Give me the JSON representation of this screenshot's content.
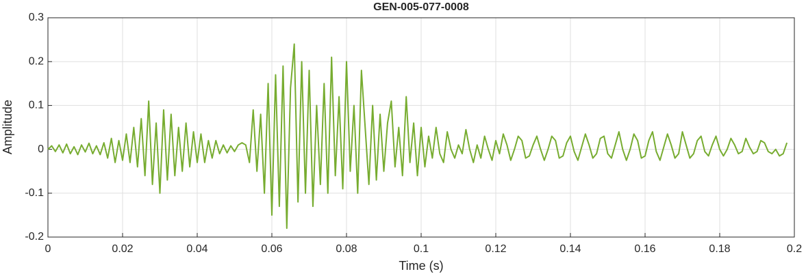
{
  "chart_data": {
    "type": "line",
    "title": "GEN-005-077-0008",
    "xlabel": "Time (s)",
    "ylabel": "Amplitude",
    "xlim": [
      0,
      0.2
    ],
    "ylim": [
      -0.2,
      0.3
    ],
    "xticks": [
      0,
      0.02,
      0.04,
      0.06,
      0.08,
      0.1,
      0.12,
      0.14,
      0.16,
      0.18,
      0.2
    ],
    "yticks": [
      -0.2,
      -0.1,
      0,
      0.1,
      0.2,
      0.3
    ],
    "grid": true,
    "x": [
      0,
      0.001,
      0.002,
      0.003,
      0.004,
      0.005,
      0.006,
      0.007,
      0.008,
      0.009,
      0.01,
      0.011,
      0.012,
      0.013,
      0.014,
      0.015,
      0.016,
      0.017,
      0.018,
      0.019,
      0.02,
      0.021,
      0.022,
      0.023,
      0.024,
      0.025,
      0.026,
      0.027,
      0.028,
      0.029,
      0.03,
      0.031,
      0.032,
      0.033,
      0.034,
      0.035,
      0.036,
      0.037,
      0.038,
      0.039,
      0.04,
      0.041,
      0.042,
      0.043,
      0.044,
      0.045,
      0.046,
      0.047,
      0.048,
      0.049,
      0.05,
      0.051,
      0.052,
      0.053,
      0.054,
      0.055,
      0.056,
      0.057,
      0.058,
      0.059,
      0.06,
      0.061,
      0.062,
      0.063,
      0.064,
      0.065,
      0.066,
      0.067,
      0.068,
      0.069,
      0.07,
      0.071,
      0.072,
      0.073,
      0.074,
      0.075,
      0.076,
      0.077,
      0.078,
      0.079,
      0.08,
      0.081,
      0.082,
      0.083,
      0.084,
      0.085,
      0.086,
      0.087,
      0.088,
      0.089,
      0.09,
      0.091,
      0.092,
      0.093,
      0.094,
      0.095,
      0.096,
      0.097,
      0.098,
      0.099,
      0.1,
      0.101,
      0.102,
      0.103,
      0.104,
      0.105,
      0.106,
      0.107,
      0.108,
      0.109,
      0.11,
      0.111,
      0.112,
      0.113,
      0.114,
      0.115,
      0.116,
      0.117,
      0.118,
      0.119,
      0.12,
      0.121,
      0.122,
      0.123,
      0.124,
      0.125,
      0.126,
      0.127,
      0.128,
      0.129,
      0.13,
      0.131,
      0.132,
      0.133,
      0.134,
      0.135,
      0.136,
      0.137,
      0.138,
      0.139,
      0.14,
      0.141,
      0.142,
      0.143,
      0.144,
      0.145,
      0.146,
      0.147,
      0.148,
      0.149,
      0.15,
      0.151,
      0.152,
      0.153,
      0.154,
      0.155,
      0.156,
      0.157,
      0.158,
      0.159,
      0.16,
      0.161,
      0.162,
      0.163,
      0.164,
      0.165,
      0.166,
      0.167,
      0.168,
      0.169,
      0.17,
      0.171,
      0.172,
      0.173,
      0.174,
      0.175,
      0.176,
      0.177,
      0.178,
      0.179,
      0.18,
      0.181,
      0.182,
      0.183,
      0.184,
      0.185,
      0.186,
      0.187,
      0.188,
      0.189,
      0.19,
      0.191,
      0.192,
      0.193,
      0.194,
      0.195,
      0.196,
      0.197,
      0.198
    ],
    "series": [
      {
        "color": "#77ac30",
        "values": [
          0,
          0.008,
          -0.005,
          0.01,
          -0.008,
          0.012,
          -0.01,
          0.006,
          -0.012,
          0.01,
          -0.006,
          0.014,
          -0.01,
          0.008,
          -0.012,
          0.015,
          -0.02,
          0.025,
          -0.03,
          0.02,
          -0.025,
          0.035,
          -0.03,
          0.05,
          -0.04,
          0.07,
          -0.06,
          0.11,
          -0.08,
          0.06,
          -0.1,
          0.09,
          -0.07,
          0.08,
          -0.06,
          0.05,
          -0.05,
          0.06,
          -0.04,
          0.04,
          -0.03,
          0.035,
          -0.03,
          0.02,
          -0.02,
          0.02,
          -0.01,
          0.01,
          -0.008,
          0.008,
          -0.005,
          0.01,
          0.015,
          0.01,
          -0.03,
          0.09,
          -0.05,
          0.08,
          -0.1,
          0.15,
          -0.15,
          0.17,
          -0.13,
          0.19,
          -0.18,
          0.14,
          0.24,
          -0.12,
          0.2,
          -0.1,
          0.18,
          -0.13,
          0.1,
          -0.08,
          0.15,
          -0.1,
          0.21,
          -0.06,
          0.12,
          -0.09,
          0.2,
          -0.05,
          0.1,
          -0.1,
          0.18,
          0.05,
          -0.08,
          0.1,
          -0.07,
          0.08,
          -0.05,
          0.06,
          0.11,
          -0.04,
          0.05,
          -0.06,
          0.12,
          -0.03,
          0.06,
          -0.06,
          0.05,
          -0.04,
          0.03,
          -0.02,
          0.05,
          -0.01,
          -0.03,
          0.04,
          0,
          -0.02,
          0.01,
          -0.01,
          0.045,
          0,
          -0.03,
          0.01,
          -0.02,
          0.03,
          0,
          -0.025,
          0.02,
          -0.01,
          0.035,
          0.01,
          -0.025,
          0,
          0.03,
          0.02,
          -0.02,
          -0.015,
          0.01,
          0.03,
          0,
          -0.025,
          0,
          0.03,
          0.02,
          -0.02,
          -0.015,
          0.015,
          0.03,
          -0.005,
          -0.025,
          0.005,
          0.035,
          0.01,
          -0.02,
          -0.01,
          0.025,
          0.03,
          -0.01,
          -0.02,
          0.01,
          0.04,
          0,
          -0.025,
          0,
          0.035,
          0.02,
          -0.02,
          -0.015,
          0.02,
          0.04,
          -0.005,
          -0.025,
          0.005,
          0.035,
          0.01,
          -0.02,
          -0.01,
          0.04,
          0.01,
          -0.02,
          -0.01,
          0.02,
          0.03,
          -0.005,
          -0.015,
          0.01,
          0.03,
          0,
          -0.015,
          0,
          0.025,
          0.01,
          -0.01,
          -0.005,
          0.025,
          0.005,
          -0.01,
          -0.005,
          0.02,
          0.015,
          -0.005,
          -0.01,
          0,
          -0.015,
          -0.01,
          0.015
        ]
      }
    ]
  }
}
